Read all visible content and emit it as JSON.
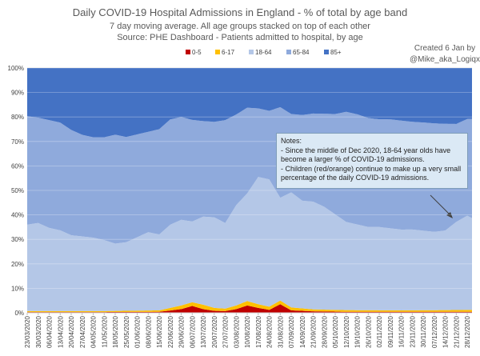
{
  "chart_data": {
    "type": "area",
    "stacked": true,
    "normalized": true,
    "title": "Daily COVID-19 Hospital Admissions in England - % of total by age band",
    "subtitle_lines": [
      "7 day moving average. All age groups stacked on top of each other",
      "Source: PHE Dashboard - Patients admitted to hospital, by age"
    ],
    "credit_lines": [
      "Created 6 Jan by",
      "@Mike_aka_Logiqx"
    ],
    "ylim": [
      0,
      100
    ],
    "y_ticks": [
      "0%",
      "10%",
      "20%",
      "30%",
      "40%",
      "50%",
      "60%",
      "70%",
      "80%",
      "90%",
      "100%"
    ],
    "grid": true,
    "legend_position": "top",
    "x_start": "2020-03-23",
    "x_end": "2020-12-31",
    "x_tick_labels": [
      "23/03/2020",
      "30/03/2020",
      "06/04/2020",
      "13/04/2020",
      "20/04/2020",
      "27/04/2020",
      "04/05/2020",
      "11/05/2020",
      "18/05/2020",
      "25/05/2020",
      "01/06/2020",
      "08/06/2020",
      "15/06/2020",
      "22/06/2020",
      "29/06/2020",
      "06/07/2020",
      "13/07/2020",
      "20/07/2020",
      "27/07/2020",
      "03/08/2020",
      "10/08/2020",
      "17/08/2020",
      "24/08/2020",
      "31/08/2020",
      "07/09/2020",
      "14/09/2020",
      "21/09/2020",
      "28/09/2020",
      "05/10/2020",
      "12/10/2020",
      "19/10/2020",
      "26/10/2020",
      "02/11/2020",
      "09/11/2020",
      "16/11/2020",
      "23/11/2020",
      "30/11/2020",
      "07/12/2020",
      "14/12/2020",
      "21/12/2020",
      "28/12/2020"
    ],
    "series": [
      {
        "name": "0-5",
        "color": "#c00000",
        "x": [
          "2020-03-23",
          "2020-05-11",
          "2020-06-15",
          "2020-06-29",
          "2020-07-06",
          "2020-07-13",
          "2020-07-20",
          "2020-07-27",
          "2020-08-03",
          "2020-08-10",
          "2020-08-17",
          "2020-08-24",
          "2020-08-31",
          "2020-09-07",
          "2020-09-21",
          "2020-10-12",
          "2020-11-16",
          "2020-12-14",
          "2020-12-31"
        ],
        "values": [
          0.3,
          0.3,
          0.4,
          1.5,
          2.8,
          1.5,
          0.8,
          0.7,
          1.5,
          3.0,
          2.0,
          1.2,
          3.5,
          1.0,
          0.6,
          0.4,
          0.4,
          0.4,
          0.4
        ]
      },
      {
        "name": "6-17",
        "color": "#ffc000",
        "x": [
          "2020-03-23",
          "2020-05-11",
          "2020-06-15",
          "2020-06-29",
          "2020-07-06",
          "2020-07-13",
          "2020-07-20",
          "2020-07-27",
          "2020-08-03",
          "2020-08-10",
          "2020-08-17",
          "2020-08-24",
          "2020-08-31",
          "2020-09-07",
          "2020-09-21",
          "2020-10-12",
          "2020-11-16",
          "2020-12-14",
          "2020-12-31"
        ],
        "values": [
          0.4,
          0.4,
          0.6,
          1.5,
          1.5,
          1.8,
          1.2,
          1.0,
          1.5,
          1.8,
          1.5,
          1.3,
          1.5,
          1.2,
          0.8,
          0.7,
          0.6,
          0.7,
          0.8
        ]
      },
      {
        "name": "18-64",
        "color": "#b4c7e7",
        "x": [
          "2020-03-23",
          "2020-03-30",
          "2020-04-06",
          "2020-04-13",
          "2020-04-20",
          "2020-04-27",
          "2020-05-04",
          "2020-05-11",
          "2020-05-18",
          "2020-05-25",
          "2020-06-01",
          "2020-06-08",
          "2020-06-15",
          "2020-06-22",
          "2020-06-29",
          "2020-07-06",
          "2020-07-13",
          "2020-07-20",
          "2020-07-27",
          "2020-08-03",
          "2020-08-10",
          "2020-08-17",
          "2020-08-24",
          "2020-08-31",
          "2020-09-07",
          "2020-09-14",
          "2020-09-21",
          "2020-09-28",
          "2020-10-05",
          "2020-10-12",
          "2020-10-19",
          "2020-10-26",
          "2020-11-02",
          "2020-11-09",
          "2020-11-16",
          "2020-11-23",
          "2020-11-30",
          "2020-12-07",
          "2020-12-14",
          "2020-12-21",
          "2020-12-28",
          "2020-12-31"
        ],
        "values": [
          35.3,
          36,
          34,
          33,
          31,
          30.5,
          30,
          29,
          27.5,
          28,
          30,
          32,
          31,
          34,
          35,
          33,
          36,
          37,
          35,
          41,
          44,
          52,
          52,
          42,
          47,
          44,
          44,
          42,
          39,
          36,
          35,
          34,
          34,
          33.5,
          33,
          33,
          32.5,
          32,
          32.5,
          36,
          38.5,
          37.5
        ]
      },
      {
        "name": "65-84",
        "color": "#8faadc",
        "x": [
          "2020-03-23",
          "2020-03-30",
          "2020-04-06",
          "2020-04-13",
          "2020-04-20",
          "2020-04-27",
          "2020-05-04",
          "2020-05-11",
          "2020-05-18",
          "2020-05-25",
          "2020-06-01",
          "2020-06-08",
          "2020-06-15",
          "2020-06-22",
          "2020-06-29",
          "2020-07-06",
          "2020-07-13",
          "2020-07-20",
          "2020-07-27",
          "2020-08-03",
          "2020-08-10",
          "2020-08-17",
          "2020-08-24",
          "2020-08-31",
          "2020-09-07",
          "2020-09-14",
          "2020-09-21",
          "2020-09-28",
          "2020-10-05",
          "2020-10-12",
          "2020-10-19",
          "2020-10-26",
          "2020-11-02",
          "2020-11-09",
          "2020-11-16",
          "2020-11-23",
          "2020-11-30",
          "2020-12-07",
          "2020-12-14",
          "2020-12-21",
          "2020-12-28",
          "2020-12-31"
        ],
        "values": [
          44.3,
          43,
          44,
          44,
          43,
          41.5,
          41,
          42,
          44.5,
          43,
          42,
          41,
          43,
          43,
          42,
          41.5,
          39,
          39,
          42,
          37,
          35,
          28,
          28,
          37,
          32,
          35,
          36,
          38,
          41,
          45,
          45,
          44.5,
          44,
          44.5,
          44.5,
          44,
          44.2,
          44.3,
          43.6,
          40,
          39.5,
          40.5
        ]
      },
      {
        "name": "85+",
        "color": "#4472c4",
        "x": [
          "2020-03-23",
          "2020-12-31"
        ],
        "values": [
          19.7,
          19.2
        ]
      }
    ],
    "annotation": {
      "title": "Notes:",
      "lines": [
        "- Since the middle of Dec 2020, 18-64 year olds have become a larger % of COVID-19 admissions.",
        "- Children (red/orange) continue to make up a very small percentage of the daily COVID-19 admissions."
      ]
    }
  }
}
